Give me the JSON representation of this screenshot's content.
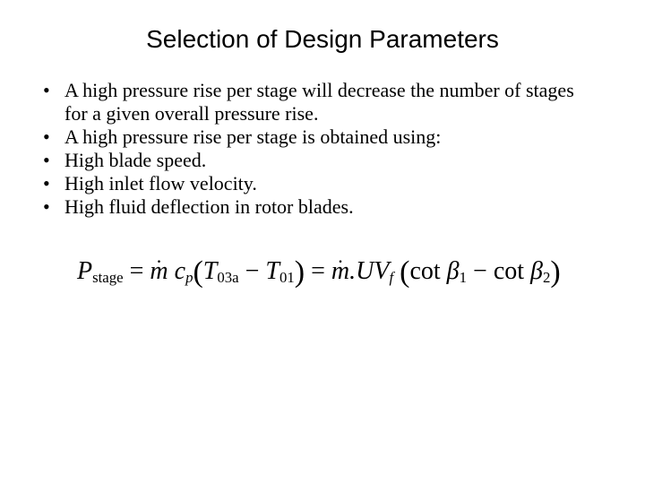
{
  "title": "Selection of Design Parameters",
  "bullets": [
    "A high pressure rise per stage will decrease the number of stages for a given overall pressure rise.",
    "A high pressure rise per stage is obtained using:",
    "High blade speed.",
    "High inlet flow velocity.",
    "High fluid deflection in rotor blades."
  ],
  "equation": {
    "P": "P",
    "P_sub": "stage",
    "eq": " = ",
    "m": "m",
    "c": "c",
    "c_sub": "p",
    "lp": "(",
    "T1": "T",
    "T1_sub": "03a",
    "minus": " − ",
    "T2": "T",
    "T2_sub": "01",
    "rp": ")",
    "eq2": " = ",
    "m2": "m",
    "U": ".U",
    "V": "V",
    "V_sub": "f",
    "lp2": "(",
    "cot1": "cot ",
    "b1": "β",
    "b1_sub": "1",
    "minus2": " − ",
    "cot2": "cot ",
    "b2": "β",
    "b2_sub": "2",
    "rp2": ")"
  }
}
